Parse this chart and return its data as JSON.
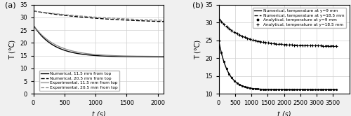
{
  "panel_a": {
    "label": "(a)",
    "xlim": [
      0,
      2100
    ],
    "ylim": [
      0,
      35
    ],
    "xticks": [
      0,
      500,
      1000,
      1500,
      2000
    ],
    "yticks": [
      0,
      5,
      10,
      15,
      20,
      25,
      30,
      35
    ],
    "xlabel": "t (s)",
    "ylabel": "T (°C)",
    "legend": [
      "Numerical, 11.5 mm from top",
      "Numerical, 20.5 mm from top",
      "Experimental, 11.5 mm from top",
      "Experimental, 20.5 mm from top"
    ]
  },
  "panel_b": {
    "label": "(b)",
    "xlim": [
      0,
      4000
    ],
    "ylim": [
      10,
      35
    ],
    "xticks": [
      0,
      500,
      1000,
      1500,
      2000,
      2500,
      3000,
      3500
    ],
    "yticks": [
      10,
      15,
      20,
      25,
      30,
      35
    ],
    "xlabel": "t (s)",
    "ylabel": "T (°C)",
    "legend": [
      "Numerical, temperature at y=9 mm",
      "Numerical, temperature at y=18.5 mm",
      "Analytical, temperature at y=9 mm",
      "Analytical, temperature at y=18.5 mm"
    ]
  },
  "fig_bg": "#f0f0f0",
  "ax_bg": "#ffffff",
  "grid_color": "#d0d0d0",
  "black": "#000000",
  "gray": "#888888"
}
